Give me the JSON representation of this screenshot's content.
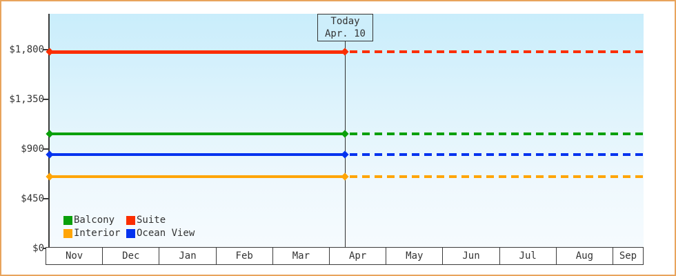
{
  "chart_data": {
    "type": "line",
    "title": "",
    "xlabel": "",
    "ylabel": "",
    "x_categories": [
      "Nov",
      "Dec",
      "Jan",
      "Feb",
      "Mar",
      "Apr",
      "May",
      "Jun",
      "Jul",
      "Aug",
      "Sep"
    ],
    "y_ticks": [
      {
        "value": 0,
        "label": "$0"
      },
      {
        "value": 450,
        "label": "$450"
      },
      {
        "value": 900,
        "label": "$900"
      },
      {
        "value": 1350,
        "label": "$1,350"
      },
      {
        "value": 1800,
        "label": "$1,800"
      }
    ],
    "ylim": [
      0,
      2120
    ],
    "grid": false,
    "legend_position": "bottom-left-inside",
    "today_marker": {
      "line1": "Today",
      "line2": "Apr. 10",
      "month": "Apr",
      "month_fraction": 0.33
    },
    "series": [
      {
        "name": "Balcony",
        "value": 1040,
        "color": "#0aa00a",
        "style_before_today": "solid",
        "style_after_today": "dashed"
      },
      {
        "name": "Suite",
        "value": 1780,
        "color": "#fb2e00",
        "style_before_today": "solid",
        "style_after_today": "dashed"
      },
      {
        "name": "Interior",
        "value": 650,
        "color": "#ffa506",
        "style_before_today": "solid",
        "style_after_today": "dashed"
      },
      {
        "name": "Ocean View",
        "value": 850,
        "color": "#0433ef",
        "style_before_today": "solid",
        "style_after_today": "dashed"
      }
    ],
    "legend_rows": [
      [
        "Balcony",
        "Suite"
      ],
      [
        "Interior",
        "Ocean View"
      ]
    ]
  },
  "colors": {
    "frame_border": "#e8a45c",
    "plot_bg_top": "#c9edfb",
    "plot_bg_bottom": "#f6fbfe",
    "axis": "#3a3a3a",
    "text": "#333333",
    "today_box_bg": "#cdeefb"
  }
}
